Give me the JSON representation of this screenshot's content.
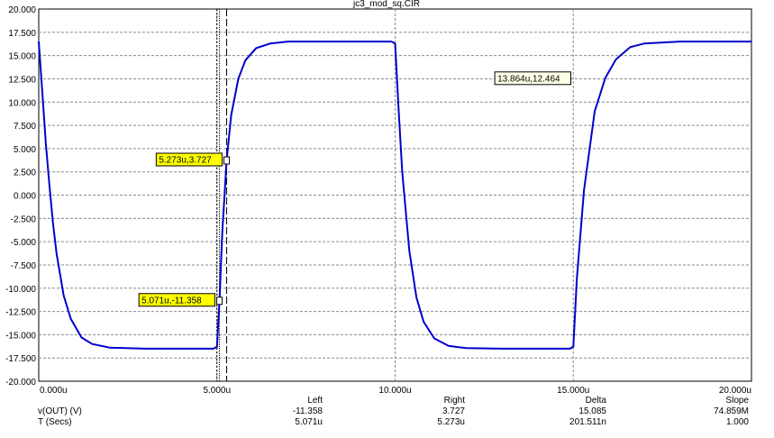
{
  "title": "jc3_mod_sq.CIR",
  "chart_data": {
    "type": "line",
    "title": "jc3_mod_sq.CIR",
    "xlim": [
      0,
      20
    ],
    "ylim": [
      -20,
      20
    ],
    "x_ticks": [
      "0.000u",
      "5.000u",
      "10.000u",
      "15.000u",
      "20.000u"
    ],
    "y_ticks": [
      "20.000",
      "17.500",
      "15.000",
      "12.500",
      "10.000",
      "7.500",
      "5.000",
      "2.500",
      "0.000",
      "-2.500",
      "-5.000",
      "-7.500",
      "-10.000",
      "-12.500",
      "-15.000",
      "-17.500",
      "-20.000"
    ],
    "grid": true,
    "series": [
      {
        "color": "#0000cc",
        "x": [
          0,
          0.1,
          0.2,
          0.3,
          0.4,
          0.5,
          0.7,
          0.9,
          1.2,
          1.5,
          2,
          3,
          4,
          4.9,
          5,
          5.071,
          5.15,
          5.273,
          5.4,
          5.6,
          5.8,
          6.1,
          6.5,
          7,
          8,
          9,
          9.9,
          10,
          10.1,
          10.2,
          10.4,
          10.6,
          10.8,
          11.1,
          11.5,
          12,
          13,
          14,
          14.9,
          15,
          15.1,
          15.3,
          15.6,
          15.9,
          16.2,
          16.6,
          17,
          18,
          19,
          20
        ],
        "y": [
          16.5,
          11.0,
          5.5,
          1.0,
          -3.0,
          -6.3,
          -10.8,
          -13.3,
          -15.3,
          -16.0,
          -16.4,
          -16.5,
          -16.5,
          -16.5,
          -16.3,
          -11.358,
          -4.0,
          3.727,
          8.6,
          12.5,
          14.5,
          15.8,
          16.3,
          16.5,
          16.5,
          16.5,
          16.5,
          16.3,
          9.0,
          2.5,
          -6.0,
          -11.0,
          -13.6,
          -15.4,
          -16.2,
          -16.45,
          -16.5,
          -16.5,
          -16.5,
          -16.3,
          -9.0,
          0.5,
          9.0,
          12.6,
          14.6,
          15.9,
          16.3,
          16.5,
          16.5,
          16.5
        ]
      }
    ],
    "cursors": {
      "left_x": 5.071,
      "right_x": 5.273,
      "extra_x": 5.0
    },
    "annotations": [
      {
        "text": "5.273u,3.727",
        "x": 5.273,
        "y": 3.727,
        "style": "yellow"
      },
      {
        "text": "5.071u,-11.358",
        "x": 5.071,
        "y": -11.358,
        "style": "yellow"
      },
      {
        "text": "13.864u,12.464",
        "x": 13.864,
        "y": 12.464,
        "style": "white"
      }
    ]
  },
  "readout": {
    "headers": {
      "left": "Left",
      "right": "Right",
      "delta": "Delta",
      "slope": "Slope"
    },
    "rows": [
      {
        "label": "v(OUT) (V)",
        "left": "-11.358",
        "right": "3.727",
        "delta": "15.085",
        "slope": "74.859M"
      },
      {
        "label": "T (Secs)",
        "left": "5.071u",
        "right": "5.273u",
        "delta": "201.511n",
        "slope": "1.000"
      }
    ]
  }
}
